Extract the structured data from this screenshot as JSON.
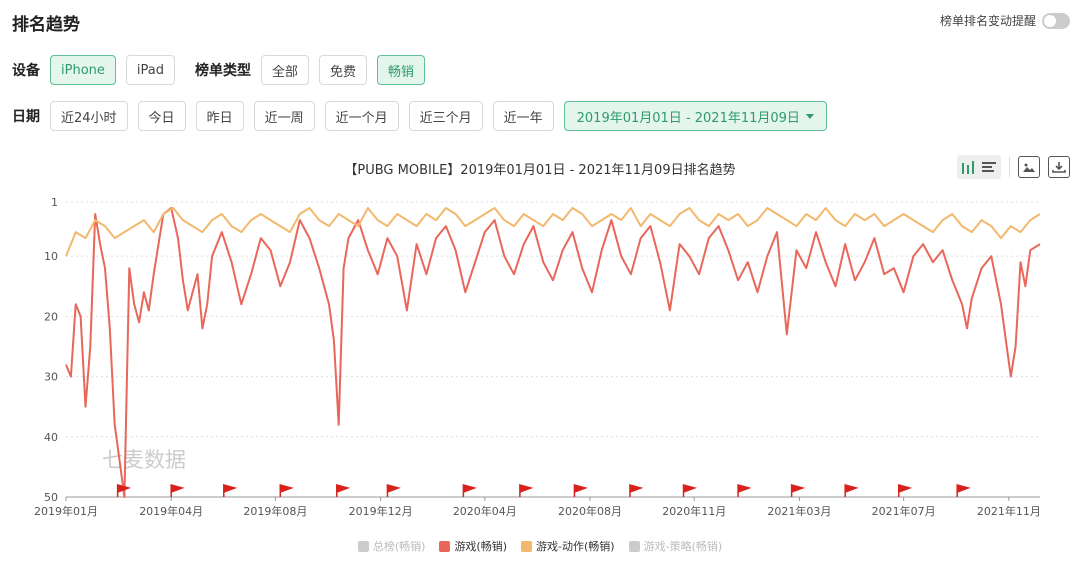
{
  "header": {
    "title": "排名趋势",
    "alert_label": "榜单排名变动提醒"
  },
  "filters": {
    "device_label": "设备",
    "devices": [
      "iPhone",
      "iPad"
    ],
    "device_selected": "iPhone",
    "list_type_label": "榜单类型",
    "list_types": [
      "全部",
      "免费",
      "畅销"
    ],
    "list_type_selected": "畅销",
    "date_label": "日期",
    "date_options": [
      "近24小时",
      "今日",
      "昨日",
      "近一周",
      "近一个月",
      "近三个月",
      "近一年"
    ],
    "date_range": "2019年01月01日 - 2021年11月09日"
  },
  "toolbar": {
    "icons": [
      "bar-chart-icon",
      "list-icon",
      "image-icon",
      "download-icon"
    ]
  },
  "chart_data": {
    "type": "line",
    "title": "【PUBG MOBILE】2019年01月01日 - 2021年11月09日排名趋势",
    "y_inverted": true,
    "ylim": [
      1,
      50
    ],
    "y_ticks": [
      1,
      10,
      20,
      30,
      40,
      50
    ],
    "x_ticks": [
      "2019年01月",
      "2019年04月",
      "2019年08月",
      "2019年12月",
      "2020年04月",
      "2020年08月",
      "2020年11月",
      "2021年03月",
      "2021年07月",
      "2021年11月"
    ],
    "x_tick_pos": [
      0.0,
      0.108,
      0.215,
      0.323,
      0.43,
      0.538,
      0.645,
      0.753,
      0.86,
      0.968
    ],
    "watermark": "七麦数据",
    "event_flags": [
      0.053,
      0.108,
      0.162,
      0.22,
      0.278,
      0.33,
      0.408,
      0.466,
      0.522,
      0.579,
      0.634,
      0.69,
      0.745,
      0.8,
      0.855,
      0.915
    ],
    "grid": true,
    "series": [
      {
        "name": "游戏(畅销)",
        "color": "#e8675a",
        "x": [
          0.0,
          0.005,
          0.01,
          0.015,
          0.02,
          0.025,
          0.03,
          0.035,
          0.04,
          0.045,
          0.05,
          0.055,
          0.06,
          0.065,
          0.07,
          0.075,
          0.08,
          0.085,
          0.09,
          0.095,
          0.1,
          0.108,
          0.115,
          0.12,
          0.125,
          0.13,
          0.135,
          0.14,
          0.145,
          0.15,
          0.16,
          0.17,
          0.18,
          0.19,
          0.2,
          0.21,
          0.22,
          0.23,
          0.24,
          0.25,
          0.26,
          0.27,
          0.275,
          0.28,
          0.285,
          0.29,
          0.3,
          0.31,
          0.32,
          0.33,
          0.34,
          0.35,
          0.36,
          0.37,
          0.38,
          0.39,
          0.4,
          0.41,
          0.42,
          0.43,
          0.44,
          0.45,
          0.46,
          0.47,
          0.48,
          0.49,
          0.5,
          0.51,
          0.52,
          0.53,
          0.54,
          0.55,
          0.56,
          0.57,
          0.58,
          0.59,
          0.6,
          0.61,
          0.62,
          0.63,
          0.64,
          0.65,
          0.66,
          0.67,
          0.68,
          0.69,
          0.7,
          0.71,
          0.72,
          0.73,
          0.74,
          0.75,
          0.76,
          0.77,
          0.78,
          0.79,
          0.8,
          0.81,
          0.82,
          0.83,
          0.84,
          0.85,
          0.86,
          0.87,
          0.88,
          0.89,
          0.9,
          0.91,
          0.92,
          0.925,
          0.93,
          0.94,
          0.95,
          0.96,
          0.965,
          0.97,
          0.975,
          0.98,
          0.985,
          0.99,
          1.0
        ],
        "y": [
          28,
          30,
          18,
          20,
          35,
          25,
          3,
          8,
          12,
          22,
          38,
          44,
          50,
          12,
          18,
          21,
          16,
          19,
          13,
          8,
          3,
          2,
          7,
          14,
          19,
          16,
          13,
          22,
          18,
          10,
          6,
          11,
          18,
          13,
          7,
          9,
          15,
          11,
          4,
          7,
          12,
          18,
          24,
          38,
          12,
          7,
          4,
          9,
          13,
          7,
          10,
          19,
          8,
          13,
          7,
          5,
          9,
          16,
          11,
          6,
          4,
          10,
          13,
          8,
          5,
          11,
          14,
          9,
          6,
          12,
          16,
          9,
          4,
          10,
          13,
          7,
          5,
          11,
          19,
          8,
          10,
          13,
          7,
          5,
          9,
          14,
          11,
          16,
          10,
          6,
          23,
          9,
          12,
          6,
          11,
          15,
          8,
          14,
          11,
          7,
          13,
          12,
          16,
          10,
          8,
          11,
          9,
          14,
          18,
          22,
          17,
          12,
          10,
          18,
          24,
          30,
          25,
          11,
          15,
          9,
          8
        ]
      },
      {
        "name": "游戏-动作(畅销)",
        "color": "#f2b86e",
        "x": [
          0.0,
          0.01,
          0.02,
          0.03,
          0.04,
          0.05,
          0.06,
          0.07,
          0.08,
          0.09,
          0.1,
          0.11,
          0.12,
          0.13,
          0.14,
          0.15,
          0.16,
          0.17,
          0.18,
          0.19,
          0.2,
          0.21,
          0.22,
          0.23,
          0.24,
          0.25,
          0.26,
          0.27,
          0.28,
          0.29,
          0.3,
          0.31,
          0.32,
          0.33,
          0.34,
          0.35,
          0.36,
          0.37,
          0.38,
          0.39,
          0.4,
          0.41,
          0.42,
          0.43,
          0.44,
          0.45,
          0.46,
          0.47,
          0.48,
          0.49,
          0.5,
          0.51,
          0.52,
          0.53,
          0.54,
          0.55,
          0.56,
          0.57,
          0.58,
          0.59,
          0.6,
          0.61,
          0.62,
          0.63,
          0.64,
          0.65,
          0.66,
          0.67,
          0.68,
          0.69,
          0.7,
          0.71,
          0.72,
          0.73,
          0.74,
          0.75,
          0.76,
          0.77,
          0.78,
          0.79,
          0.8,
          0.81,
          0.82,
          0.83,
          0.84,
          0.85,
          0.86,
          0.87,
          0.88,
          0.89,
          0.9,
          0.91,
          0.92,
          0.93,
          0.94,
          0.95,
          0.96,
          0.97,
          0.98,
          0.99,
          1.0
        ],
        "y": [
          10,
          6,
          7,
          4,
          5,
          7,
          6,
          5,
          4,
          6,
          3,
          2,
          4,
          5,
          6,
          4,
          3,
          5,
          6,
          4,
          3,
          4,
          5,
          6,
          3,
          2,
          4,
          5,
          3,
          4,
          5,
          2,
          4,
          5,
          3,
          4,
          5,
          3,
          4,
          2,
          3,
          5,
          4,
          3,
          2,
          4,
          5,
          3,
          4,
          5,
          3,
          4,
          2,
          3,
          5,
          4,
          3,
          4,
          2,
          5,
          3,
          4,
          5,
          3,
          2,
          4,
          5,
          3,
          4,
          3,
          5,
          4,
          2,
          3,
          4,
          5,
          3,
          4,
          2,
          4,
          5,
          3,
          4,
          3,
          5,
          4,
          3,
          4,
          5,
          6,
          4,
          3,
          5,
          6,
          4,
          5,
          7,
          5,
          6,
          4,
          3
        ]
      }
    ],
    "legend": [
      {
        "name": "总榜(畅销)",
        "color": "#cccccc",
        "active": false
      },
      {
        "name": "游戏(畅销)",
        "color": "#e8675a",
        "active": true
      },
      {
        "name": "游戏-动作(畅销)",
        "color": "#f2b86e",
        "active": true
      },
      {
        "name": "游戏-策略(畅销)",
        "color": "#cccccc",
        "active": false
      }
    ]
  }
}
